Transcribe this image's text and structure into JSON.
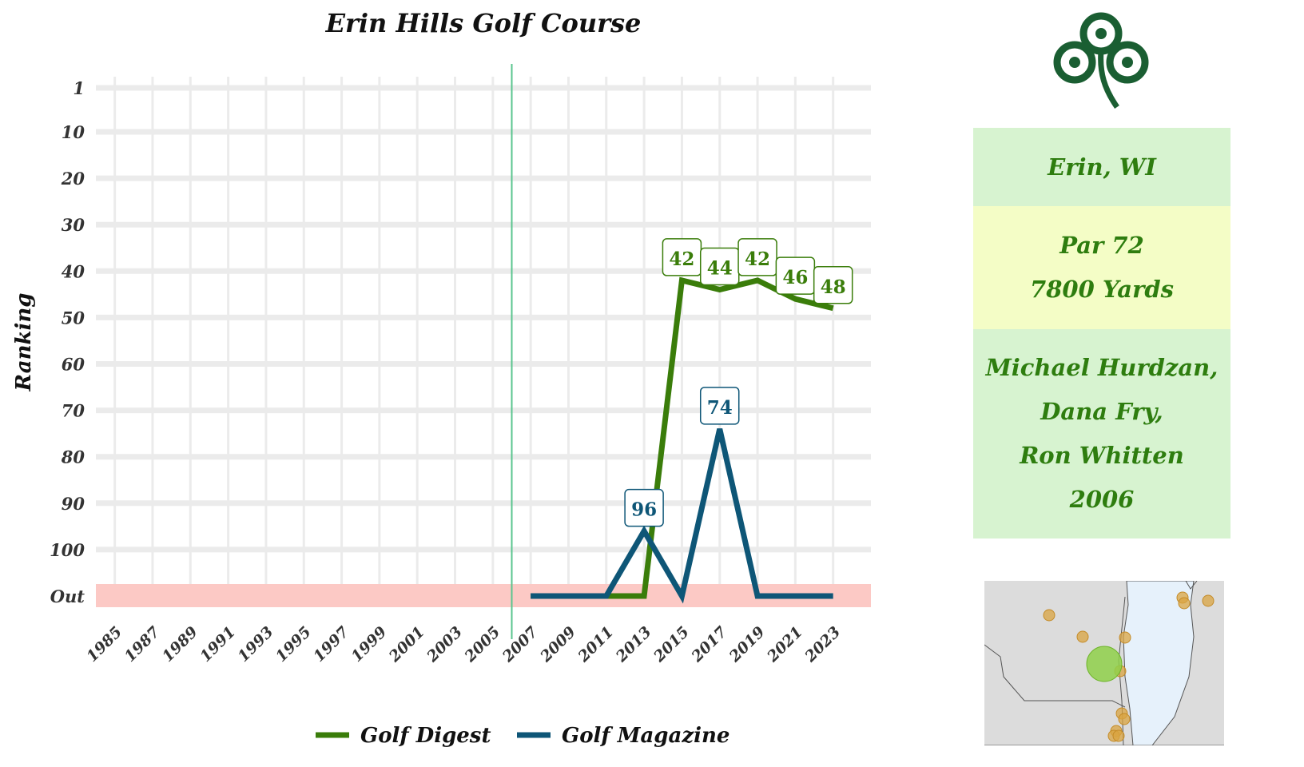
{
  "chart_data": {
    "type": "line",
    "title": "Erin Hills Golf Course",
    "xlabel": "",
    "ylabel": "Ranking",
    "x_ticks": [
      "1985",
      "1987",
      "1989",
      "1991",
      "1993",
      "1995",
      "1997",
      "1999",
      "2001",
      "2003",
      "2005",
      "2007",
      "2009",
      "2011",
      "2013",
      "2015",
      "2017",
      "2019",
      "2021",
      "2023"
    ],
    "y_ticks": [
      "1",
      "10",
      "20",
      "30",
      "40",
      "50",
      "60",
      "70",
      "80",
      "90",
      "100",
      "Out"
    ],
    "xlim": [
      1984,
      2025
    ],
    "out_value": "Out",
    "opened_year": 2006,
    "series": [
      {
        "name": "Golf Digest",
        "color": "#3a7d0a",
        "points": [
          {
            "x": 2007,
            "y": "Out"
          },
          {
            "x": 2009,
            "y": "Out"
          },
          {
            "x": 2011,
            "y": "Out"
          },
          {
            "x": 2013,
            "y": "Out"
          },
          {
            "x": 2015,
            "y": 42
          },
          {
            "x": 2017,
            "y": 44
          },
          {
            "x": 2019,
            "y": 42
          },
          {
            "x": 2021,
            "y": 46
          },
          {
            "x": 2023,
            "y": 48
          }
        ],
        "labels": [
          {
            "x": 2015,
            "y": 42,
            "text": "42"
          },
          {
            "x": 2017,
            "y": 44,
            "text": "44"
          },
          {
            "x": 2019,
            "y": 42,
            "text": "42"
          },
          {
            "x": 2021,
            "y": 46,
            "text": "46"
          },
          {
            "x": 2023,
            "y": 48,
            "text": "48"
          }
        ]
      },
      {
        "name": "Golf Magazine",
        "color": "#0e5677",
        "points": [
          {
            "x": 2007,
            "y": "Out"
          },
          {
            "x": 2009,
            "y": "Out"
          },
          {
            "x": 2011,
            "y": "Out"
          },
          {
            "x": 2013,
            "y": 96
          },
          {
            "x": 2015,
            "y": "Out"
          },
          {
            "x": 2017,
            "y": 74
          },
          {
            "x": 2019,
            "y": "Out"
          },
          {
            "x": 2021,
            "y": "Out"
          },
          {
            "x": 2023,
            "y": "Out"
          }
        ],
        "labels": [
          {
            "x": 2013,
            "y": 96,
            "text": "96"
          },
          {
            "x": 2017,
            "y": 74,
            "text": "74"
          }
        ]
      }
    ],
    "grid": true,
    "legend": "bottom"
  },
  "colors": {
    "opened_line": "#5ac58e",
    "out_band": "#fcc9c5",
    "grid": "#ebebeb",
    "accent_text": "#2e7d0f",
    "logo": "#1a5e32"
  },
  "logo": {
    "icon": "shamrock-icon"
  },
  "info": {
    "location": "Erin, WI",
    "par": "Par 72",
    "yards": "7800 Yards",
    "designers": [
      "Michael Hurdzan,",
      "Dana Fry,",
      "Ron Whitten"
    ],
    "year": "2006"
  },
  "map": {
    "icon": "region-map",
    "colors": {
      "land": "#dcdcdc",
      "water": "#e6f1fb",
      "course": "#8fd04a",
      "other": "#d9a441"
    }
  }
}
